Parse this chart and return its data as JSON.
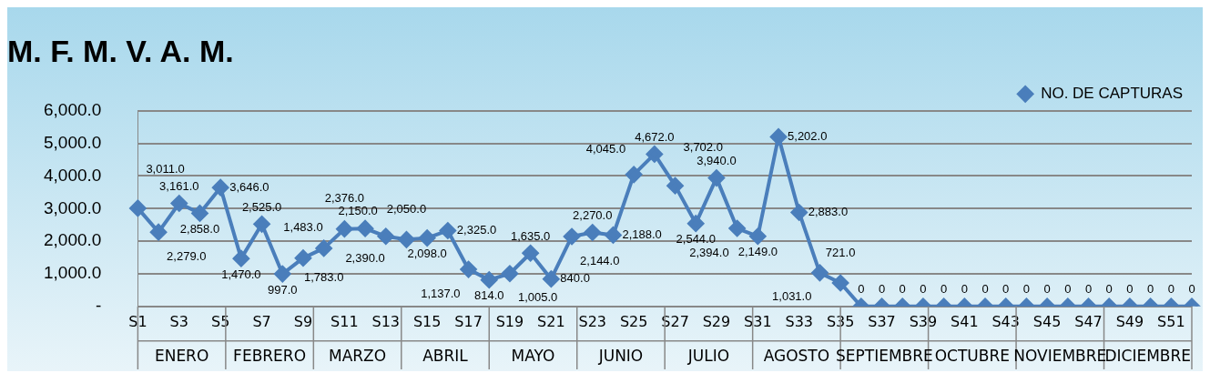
{
  "chart_data": {
    "type": "line",
    "title": "M. F. M. V. A. M.",
    "categories": [
      "S1",
      null,
      "S3",
      null,
      "S5",
      null,
      "S7",
      null,
      "S9",
      null,
      "S11",
      null,
      "S13",
      null,
      "S15",
      null,
      "S17",
      null,
      "S19",
      null,
      "S21",
      null,
      "S23",
      null,
      "S25",
      null,
      "S27",
      null,
      "S29",
      null,
      "S31",
      null,
      "S33",
      null,
      "S35",
      null,
      "S37",
      null,
      "S39",
      null,
      "S41",
      null,
      "S43",
      null,
      "S45",
      null,
      "S47",
      null,
      "S49",
      null,
      "S51",
      null
    ],
    "series": [
      {
        "name": "NO. DE CAPTURAS",
        "color": "#4a7ebb",
        "values": [
          3011,
          2279,
          3161,
          2858,
          3646,
          1470,
          2525,
          997,
          1483,
          1783,
          2376,
          2390,
          2150,
          2050,
          2098,
          2325,
          1137,
          814,
          1005,
          1635,
          840,
          2144,
          2270,
          2188,
          4045,
          4672,
          3702,
          2544,
          3940,
          2394,
          2149,
          5202,
          2883,
          1031,
          721,
          0,
          0,
          0,
          0,
          0,
          0,
          0,
          0,
          0,
          0,
          0,
          0,
          0,
          0,
          0,
          0,
          0
        ],
        "value_labels": [
          "3,011.0",
          "2,279.0",
          "3,161.0",
          "2,858.0",
          "3,646.0",
          "1,470.0",
          "2,525.0",
          "997.0",
          "1,483.0",
          "1,783.0",
          "2,376.0",
          "2,390.0",
          "2,150.0",
          "2,050.0",
          "2,098.0",
          "2,325.0",
          "1,137.0",
          "814.0",
          "1,005.0",
          "1,635.0",
          "840.0",
          "2,144.0",
          "2,270.0",
          "2,188.0",
          "4,045.0",
          "4,672.0",
          "3,702.0",
          "2,544.0",
          "3,940.0",
          "2,394.0",
          "2,149.0",
          "5,202.0",
          "2,883.0",
          "1,031.0",
          "721.0",
          "0",
          "0",
          "0",
          "0",
          "0",
          "0",
          "0",
          "0",
          "0",
          "0",
          "0",
          "0",
          "0",
          "0",
          "0",
          "0",
          "0"
        ]
      }
    ],
    "ylim": [
      0,
      6000
    ],
    "yticks": [
      {
        "value": 0,
        "label": "-"
      },
      {
        "value": 1000,
        "label": "1,000.0"
      },
      {
        "value": 2000,
        "label": "2,000.0"
      },
      {
        "value": 3000,
        "label": "3,000.0"
      },
      {
        "value": 4000,
        "label": "4,000.0"
      },
      {
        "value": 5000,
        "label": "5,000.0"
      },
      {
        "value": 6000,
        "label": "6,000.0"
      }
    ],
    "annotations": [
      "ENERO",
      "FEBRERO",
      "MARZO",
      "ABRIL",
      "MAYO",
      "JUNIO",
      "JULIO",
      "AGOSTO",
      "SEPTIEMBRE",
      "OCTUBRE",
      "NOVIEMBRE",
      "DICIEMBRE"
    ],
    "grid": "y",
    "legend": "top right",
    "marker": "diamond",
    "line_style": "solid"
  }
}
